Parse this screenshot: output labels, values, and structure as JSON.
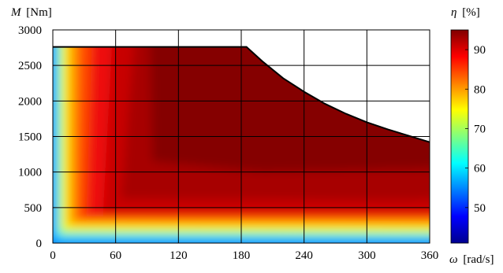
{
  "chart_data": {
    "type": "heatmap",
    "title": "",
    "xlabel_symbol": "ω",
    "xlabel_unit": "[rad/s]",
    "ylabel_symbol": "M",
    "ylabel_unit": "[Nm]",
    "colorbar_label_symbol": "η",
    "colorbar_label_unit": "[%]",
    "xlim": [
      0,
      360
    ],
    "ylim": [
      0,
      3000
    ],
    "x_ticks": [
      0,
      60,
      120,
      180,
      240,
      300,
      360
    ],
    "y_ticks": [
      0,
      500,
      1000,
      1500,
      2000,
      2500,
      3000
    ],
    "colorbar_range": [
      41,
      95
    ],
    "colorbar_ticks": [
      50,
      60,
      70,
      80,
      90
    ],
    "grid": true,
    "colormap": "jet",
    "max_torque_envelope": {
      "omega": [
        0,
        185,
        200,
        220,
        240,
        260,
        280,
        300,
        320,
        340,
        360
      ],
      "torque": [
        2760,
        2760,
        2560,
        2320,
        2130,
        1960,
        1820,
        1700,
        1600,
        1510,
        1420
      ]
    },
    "efficiency_zones": [
      {
        "region": "near zero speed",
        "omega_range": [
          0,
          5
        ],
        "efficiency": 45
      },
      {
        "region": "low torque band",
        "torque_range": [
          0,
          100
        ],
        "efficiency": 78
      },
      {
        "region": "peak region",
        "omega_range": [
          90,
          360
        ],
        "torque_range": [
          1000,
          2760
        ],
        "efficiency": 95
      }
    ]
  }
}
